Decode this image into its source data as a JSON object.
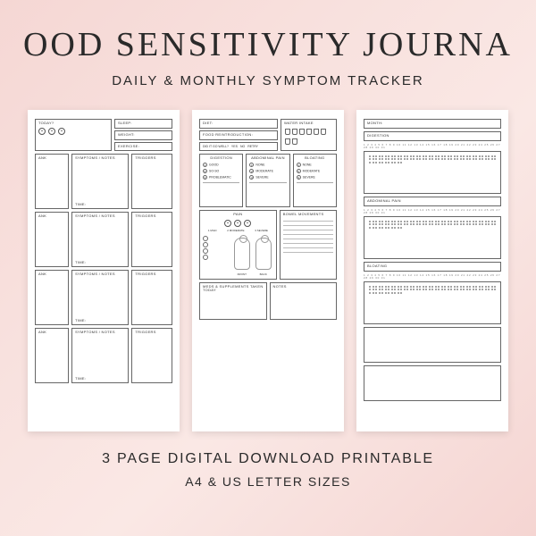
{
  "title": "OOD SENSITIVITY JOURNA",
  "subtitle": "DAILY & MONTHLY SYMPTOM TRACKER",
  "footer_line1": "3 PAGE DIGITAL DOWNLOAD PRINTABLE",
  "footer_line2": "A4 & US LETTER SIZES",
  "colors": {
    "bg_start": "#f5d7d4",
    "bg_end": "#f5d5d2",
    "text": "#2a2a2a",
    "page_bg": "#ffffff",
    "border": "#666666"
  },
  "page1": {
    "today_label": "TODAY?",
    "sleep": "SLEEP:",
    "weight": "WEIGHT:",
    "exercise": "EXERCISE:",
    "block_labels": {
      "ank": "ANK",
      "symptoms": "SYMPTOMS / NOTES",
      "triggers": "TRIGGERS",
      "time": "TIME:"
    },
    "block_count": 4
  },
  "page2": {
    "diet": "DIET:",
    "food_reintro": "FOOD REINTRODUCTION:",
    "did_go": "DID IT GO WELL?",
    "yes": "YES",
    "no": "NO",
    "retry": "RETRY",
    "water": "WATER INTAKE",
    "cup_count": 8,
    "digestion": {
      "title": "DIGESTION",
      "opts": [
        "GOOD",
        "SO-SO",
        "PROBLEMATIC"
      ]
    },
    "abdominal": {
      "title": "ABDOMINAL PAIN",
      "opts": [
        "NONE",
        "MODERATE",
        "SEVERE"
      ]
    },
    "bloating": {
      "title": "BLOATING",
      "opts": [
        "NONE",
        "MODERATE",
        "SEVERE"
      ]
    },
    "pain": {
      "title": "PAIN",
      "scale": [
        "MILD",
        "MODERATE",
        "SEVERE"
      ],
      "front": "FRONT",
      "back": "BACK"
    },
    "bowel": "BOWEL MOVEMENTS",
    "meds": "MEDS & SUPPLEMENTS TAKEN TODAY",
    "notes": "NOTES"
  },
  "page3": {
    "month": "MONTH:",
    "sections": [
      "DIGESTION",
      "ABDOMINAL PAIN",
      "BLOATING"
    ],
    "days": "1 2 3 4 5 6 7 8 9 10 11 12 13 14 15 16 17 18 19 20 21 22 23 24 25 26 27 28 29 30 31"
  }
}
